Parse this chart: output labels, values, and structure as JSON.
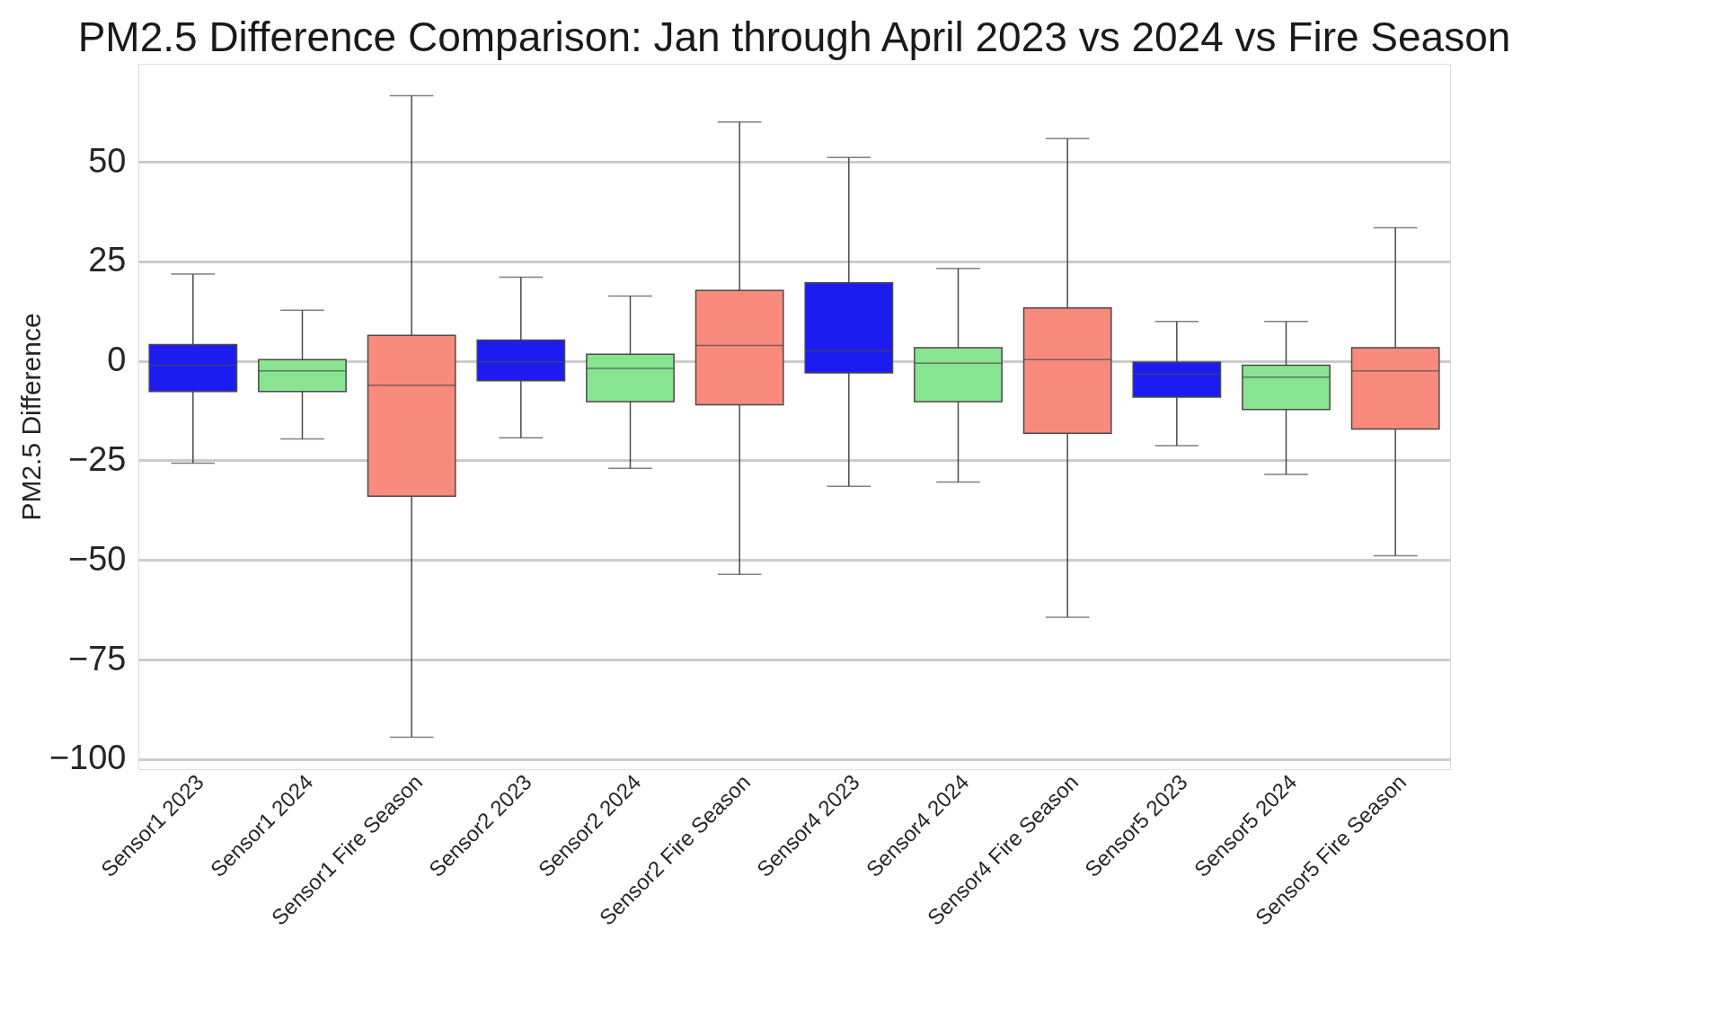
{
  "chart_data": {
    "type": "box",
    "title": "PM2.5 Difference Comparison: Jan through April 2023 vs 2024 vs Fire Season",
    "ylabel": "PM2.5 Difference",
    "categories": [
      "Sensor1 2023",
      "Sensor1 2024",
      "Sensor1 Fire Season",
      "Sensor2 2023",
      "Sensor2 2024",
      "Sensor2 Fire Season",
      "Sensor4 2023",
      "Sensor4 2024",
      "Sensor4 Fire Season",
      "Sensor5 2023",
      "Sensor5 2024",
      "Sensor5 Fire Season"
    ],
    "colors": [
      "#1c1cf0",
      "#88e490",
      "#f88a7e",
      "#1c1cf0",
      "#88e490",
      "#f88a7e",
      "#1c1cf0",
      "#88e490",
      "#f88a7e",
      "#1c1cf0",
      "#88e490",
      "#f88a7e"
    ],
    "boxes": [
      {
        "low": -25.7,
        "q1": -7.7,
        "median": -1.1,
        "q3": 4.1,
        "high": 21.8
      },
      {
        "low": -19.6,
        "q1": -7.7,
        "median": -2.5,
        "q3": 0.3,
        "high": 12.7
      },
      {
        "low": -94.5,
        "q1": -34,
        "median": -6.1,
        "q3": 6.4,
        "high": 66.6
      },
      {
        "low": -19.3,
        "q1": -5,
        "median": -0.3,
        "q3": 5.2,
        "high": 21
      },
      {
        "low": -27,
        "q1": -10.2,
        "median": -1.9,
        "q3": 1.7,
        "high": 16.3
      },
      {
        "low": -53.6,
        "q1": -11,
        "median": 3.9,
        "q3": 17.7,
        "high": 60
      },
      {
        "low": -31.5,
        "q1": -3,
        "median": 2.5,
        "q3": 19.6,
        "high": 51.1
      },
      {
        "low": -30.4,
        "q1": -10.2,
        "median": -0.6,
        "q3": 3.3,
        "high": 23.2
      },
      {
        "low": -64.4,
        "q1": -18.2,
        "median": 0.3,
        "q3": 13.3,
        "high": 55.8
      },
      {
        "low": -21.3,
        "q1": -9.1,
        "median": -3.3,
        "q3": -0.3,
        "high": 9.9
      },
      {
        "low": -28.5,
        "q1": -12.2,
        "median": -4.1,
        "q3": -1.1,
        "high": 9.9
      },
      {
        "low": -48.9,
        "q1": -17.1,
        "median": -2.5,
        "q3": 3.3,
        "high": 33.4
      }
    ],
    "ylim": [
      -102.5,
      74.6
    ],
    "yticks": [
      -100,
      -75,
      -50,
      -25,
      0,
      25,
      50
    ],
    "grid": "y"
  }
}
